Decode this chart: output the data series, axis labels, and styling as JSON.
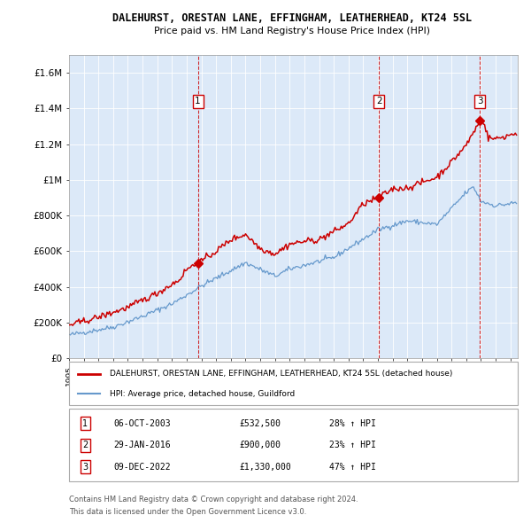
{
  "title": "DALEHURST, ORESTAN LANE, EFFINGHAM, LEATHERHEAD, KT24 5SL",
  "subtitle": "Price paid vs. HM Land Registry's House Price Index (HPI)",
  "red_label": "DALEHURST, ORESTAN LANE, EFFINGHAM, LEATHERHEAD, KT24 5SL (detached house)",
  "blue_label": "HPI: Average price, detached house, Guildford",
  "footnote1": "Contains HM Land Registry data © Crown copyright and database right 2024.",
  "footnote2": "This data is licensed under the Open Government Licence v3.0.",
  "sales": [
    {
      "num": 1,
      "date": "06-OCT-2003",
      "price": 532500,
      "pct": "28%",
      "dir": "↑",
      "x_year": 2003.76
    },
    {
      "num": 2,
      "date": "29-JAN-2016",
      "price": 900000,
      "pct": "23%",
      "dir": "↑",
      "x_year": 2016.08
    },
    {
      "num": 3,
      "date": "09-DEC-2022",
      "price": 1330000,
      "pct": "47%",
      "dir": "↑",
      "x_year": 2022.93
    }
  ],
  "ylim": [
    0,
    1700000
  ],
  "xlim_start": 1995.0,
  "xlim_end": 2025.5,
  "yticks": [
    0,
    200000,
    400000,
    600000,
    800000,
    1000000,
    1200000,
    1400000,
    1600000
  ],
  "ytick_labels": [
    "£0",
    "£200K",
    "£400K",
    "£600K",
    "£800K",
    "£1M",
    "£1.2M",
    "£1.4M",
    "£1.6M"
  ],
  "plot_bg": "#dce9f8",
  "red_color": "#cc0000",
  "blue_color": "#6699cc",
  "grid_color": "#ffffff",
  "sale_prices": [
    532500,
    900000,
    1330000
  ]
}
